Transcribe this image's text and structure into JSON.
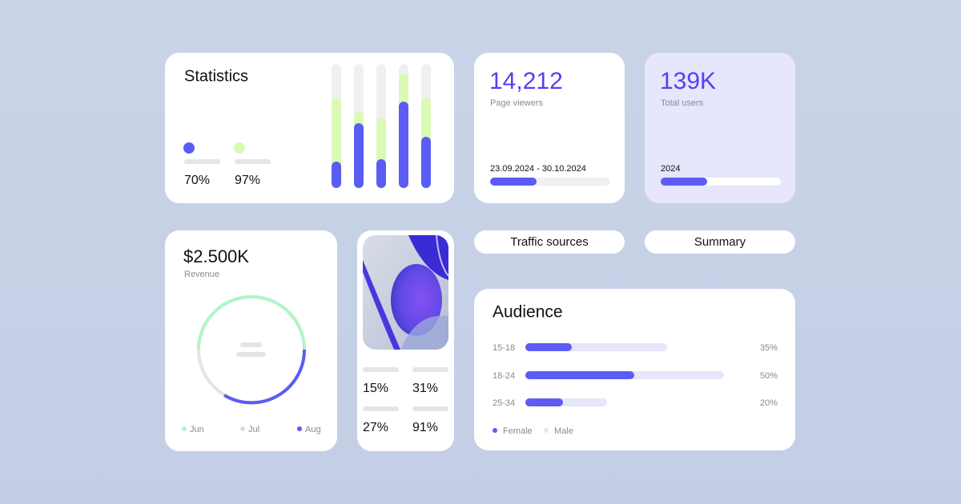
{
  "statistics": {
    "title": "Statistics",
    "legend": [
      "70%",
      "97%"
    ]
  },
  "page_viewers": {
    "value": "14,212",
    "label": "Page viewers",
    "date_range": "23.09.2024 - 30.10.2024"
  },
  "total_users": {
    "value": "139K",
    "label": "Total users",
    "year": "2024"
  },
  "revenue": {
    "value": "$2.500K",
    "label": "Revenue",
    "legend": [
      "Jun",
      "Jul",
      "Aug"
    ]
  },
  "metrics": [
    "15%",
    "31%",
    "27%",
    "91%"
  ],
  "tabs": [
    "Traffic sources",
    "Summary"
  ],
  "audience": {
    "title": "Audience",
    "rows": [
      {
        "label": "15-18",
        "value": "35%"
      },
      {
        "label": "18-24",
        "value": "50%"
      },
      {
        "label": "25-34",
        "value": "20%"
      }
    ],
    "legend": [
      "Female",
      "Male"
    ]
  }
}
